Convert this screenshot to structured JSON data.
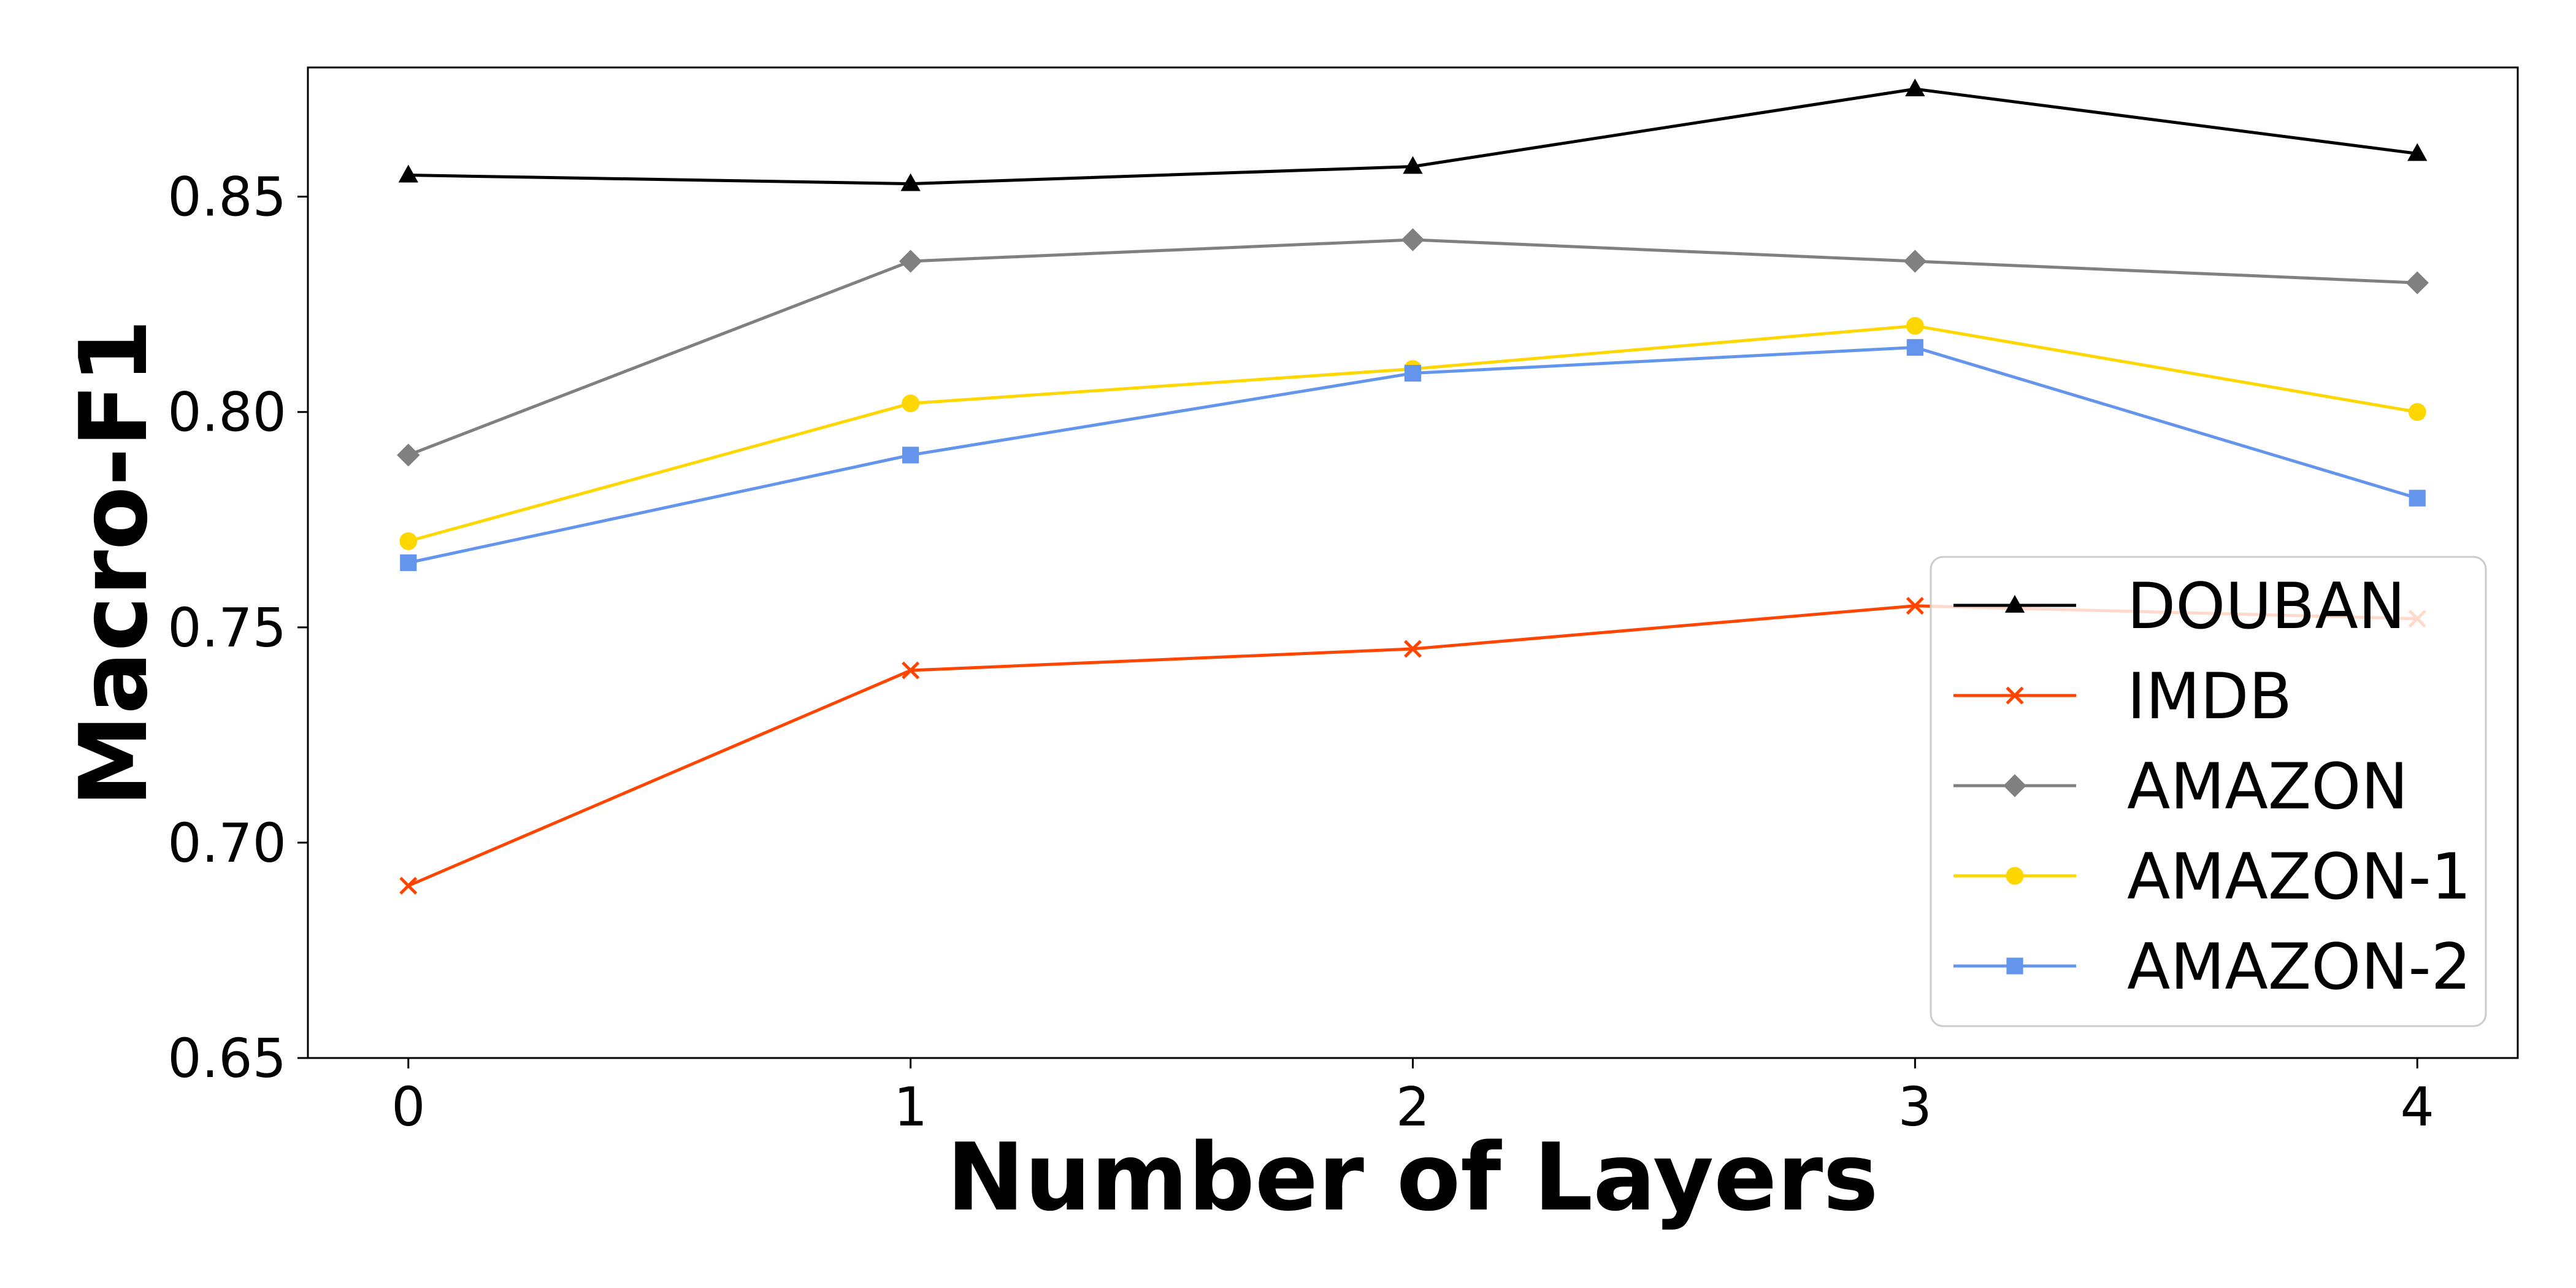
{
  "chart_data": {
    "type": "line",
    "title": "",
    "xlabel": "Number of Layers",
    "ylabel": "Macro-F1",
    "x": [
      0,
      1,
      2,
      3,
      4
    ],
    "xticks": [
      "0",
      "1",
      "2",
      "3",
      "4"
    ],
    "yticks": [
      "0.65",
      "0.70",
      "0.75",
      "0.80",
      "0.85"
    ],
    "xlim": [
      -0.2,
      4.2
    ],
    "ylim": [
      0.65,
      0.88
    ],
    "grid": false,
    "legend_position": "lower-right",
    "series": [
      {
        "name": "DOUBAN",
        "color": "#000000",
        "marker": "triangle",
        "values": [
          0.855,
          0.853,
          0.857,
          0.875,
          0.86
        ]
      },
      {
        "name": "IMDB",
        "color": "#ff4500",
        "marker": "x",
        "values": [
          0.69,
          0.74,
          0.745,
          0.755,
          0.752
        ]
      },
      {
        "name": "AMAZON",
        "color": "#808080",
        "marker": "diamond",
        "values": [
          0.79,
          0.835,
          0.84,
          0.835,
          0.83
        ]
      },
      {
        "name": "AMAZON-1",
        "color": "#ffd700",
        "marker": "circle",
        "values": [
          0.77,
          0.802,
          0.81,
          0.82,
          0.8
        ]
      },
      {
        "name": "AMAZON-2",
        "color": "#6495ed",
        "marker": "square",
        "values": [
          0.765,
          0.79,
          0.809,
          0.815,
          0.78
        ]
      }
    ]
  }
}
